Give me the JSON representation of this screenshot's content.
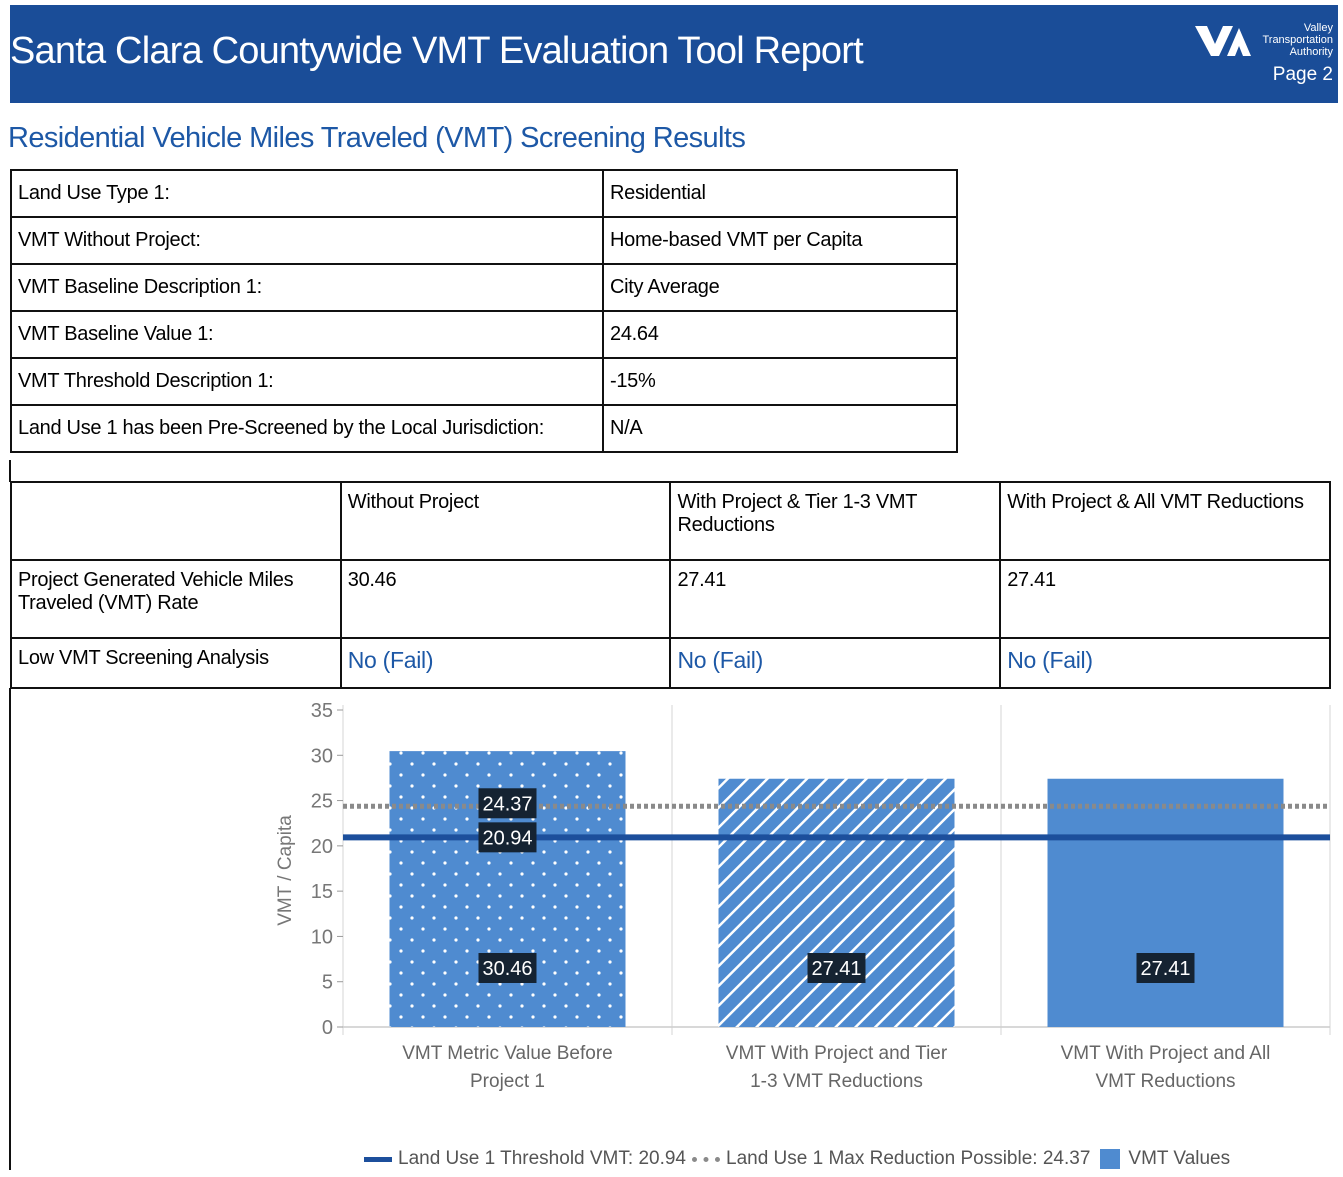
{
  "header": {
    "title": "Santa Clara Countywide VMT Evaluation Tool Report",
    "logo_text": "Valley Transportation Authority",
    "page": "Page 2"
  },
  "section_title": "Residential Vehicle Miles Traveled (VMT) Screening Results",
  "info_table": {
    "rows": [
      [
        "Land Use Type 1:",
        "Residential"
      ],
      [
        "VMT Without Project:",
        "Home-based VMT per Capita"
      ],
      [
        "VMT Baseline Description 1:",
        "City Average"
      ],
      [
        "VMT Baseline Value 1:",
        "24.64"
      ],
      [
        "VMT Threshold Description 1:",
        "-15%"
      ],
      [
        "Land Use 1 has been Pre-Screened by the Local Jurisdiction:",
        "N/A"
      ]
    ]
  },
  "results_table": {
    "columns": [
      "Without Project",
      "With Project & Tier 1-3 VMT Reductions",
      "With Project & All VMT Reductions"
    ],
    "rows": [
      [
        "Project Generated Vehicle Miles Traveled (VMT) Rate",
        "30.46",
        "27.41",
        "27.41"
      ],
      [
        "Low VMT Screening Analysis",
        "No (Fail)",
        "No (Fail)",
        "No (Fail)"
      ]
    ]
  },
  "chart_data": {
    "type": "bar",
    "y_label": "VMT / Capita",
    "categories": [
      "VMT Metric Value Before Project 1",
      "VMT With Project and Tier 1-3 VMT Reductions",
      "VMT With Project and All VMT Reductions"
    ],
    "series": [
      {
        "name": "VMT Values",
        "color": "#4f8bd0",
        "values": [
          30.46,
          27.41,
          27.41
        ],
        "patterns": [
          "dots",
          "stripes",
          "solid"
        ]
      }
    ],
    "reference_lines": [
      {
        "name": "Land Use 1 Threshold VMT: 20.94",
        "value": 20.94,
        "color": "#1c4f9c",
        "style": "solid"
      },
      {
        "name": "Land Use 1 Max Reduction Possible: 24.37",
        "value": 24.37,
        "color": "#8a8a8a",
        "style": "dotted"
      }
    ],
    "ylim": [
      0,
      35
    ],
    "yticks": [
      0,
      5,
      10,
      15,
      20,
      25,
      30,
      35
    ],
    "grid": "vertical"
  }
}
